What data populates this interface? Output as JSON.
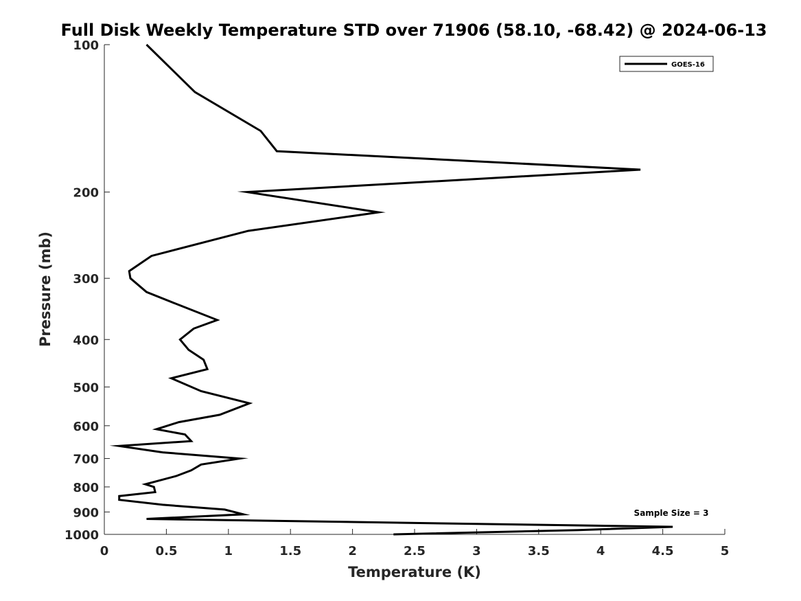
{
  "chart_data": {
    "type": "line",
    "title": "Full Disk Weekly Temperature STD over 71906 (58.10, -68.42) @ 2024-06-13",
    "xlabel": "Temperature (K)",
    "ylabel": "Pressure (mb)",
    "xlim": [
      0,
      5
    ],
    "ylim": [
      100,
      1000
    ],
    "y_scale": "log",
    "y_reversed": true,
    "x_ticks": [
      0,
      0.5,
      1,
      1.5,
      2,
      2.5,
      3,
      3.5,
      4,
      4.5,
      5
    ],
    "x_tick_labels": [
      "0",
      "0.5",
      "1",
      "1.5",
      "2",
      "2.5",
      "3",
      "3.5",
      "4",
      "4.5",
      "5"
    ],
    "y_ticks": [
      100,
      200,
      300,
      400,
      500,
      600,
      700,
      800,
      900,
      1000
    ],
    "y_tick_labels": [
      "100",
      "200",
      "300",
      "400",
      "500",
      "600",
      "700",
      "800",
      "900",
      "1000"
    ],
    "grid": false,
    "legend_position": "top-right",
    "annotation": "Sample Size = 3",
    "line_color": "#000000",
    "series": [
      {
        "name": "GOES-16",
        "x": [
          0.34,
          0.73,
          1.26,
          1.39,
          4.32,
          1.15,
          2.21,
          1.16,
          0.38,
          0.2,
          0.21,
          0.34,
          0.6,
          0.91,
          0.72,
          0.61,
          0.68,
          0.8,
          0.83,
          0.54,
          0.78,
          1.17,
          0.93,
          0.6,
          0.42,
          0.65,
          0.7,
          0.12,
          0.47,
          1.09,
          0.78,
          0.7,
          0.58,
          0.33,
          0.4,
          0.41,
          0.12,
          0.12,
          0.47,
          0.97,
          1.12,
          0.34,
          4.58,
          3.82,
          2.33
        ],
        "y": [
          100,
          125,
          150,
          165,
          180,
          200,
          220,
          240,
          270,
          290,
          300,
          320,
          340,
          365,
          380,
          400,
          420,
          440,
          460,
          480,
          510,
          540,
          570,
          590,
          610,
          625,
          645,
          660,
          680,
          700,
          720,
          740,
          760,
          790,
          800,
          820,
          835,
          850,
          870,
          890,
          910,
          930,
          965,
          980,
          1000
        ]
      }
    ]
  }
}
